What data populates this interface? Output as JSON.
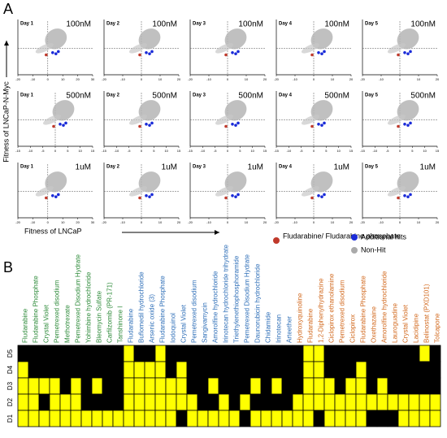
{
  "figure": {
    "panel_a": {
      "label": "A",
      "y_axis_label": "Fitness of LNCaP-N-Myc",
      "x_axis_label": "Fitness of LNCaP",
      "legend": [
        "Fludarabine/ Fludarabine phosphate",
        "Additional hits",
        "Non-Hit"
      ],
      "panels": [
        {
          "day": "Day 1",
          "dose": "100nM",
          "xlim": [
            -20,
            30
          ],
          "xticks": [
            -20,
            -10,
            0,
            10,
            20,
            30
          ]
        },
        {
          "day": "Day 2",
          "dose": "100nM",
          "xlim": [
            -20,
            20
          ],
          "xticks": [
            -20,
            -10,
            0,
            10,
            20
          ]
        },
        {
          "day": "Day 3",
          "dose": "100nM",
          "xlim": [
            -20,
            20
          ],
          "xticks": [
            -20,
            -10,
            0,
            10,
            20
          ]
        },
        {
          "day": "Day 4",
          "dose": "100nM",
          "xlim": [
            -20,
            20
          ],
          "xticks": [
            -20,
            -10,
            0,
            10,
            20
          ]
        },
        {
          "day": "Day 5",
          "dose": "100nM",
          "xlim": [
            -20,
            20
          ],
          "xticks": [
            -20,
            -10,
            0,
            10,
            20
          ]
        },
        {
          "day": "Day 1",
          "dose": "500nM",
          "xlim": [
            -15,
            15
          ],
          "xticks": [
            -15,
            -10,
            -5,
            0,
            5,
            10,
            15
          ]
        },
        {
          "day": "Day 2",
          "dose": "500nM",
          "xlim": [
            -15,
            15
          ],
          "xticks": [
            -15,
            -10,
            -5,
            0,
            5,
            10,
            15
          ]
        },
        {
          "day": "Day 3",
          "dose": "500nM",
          "xlim": [
            -15,
            15
          ],
          "xticks": [
            -15,
            -10,
            -5,
            0,
            5,
            10,
            15
          ]
        },
        {
          "day": "Day 4",
          "dose": "500nM",
          "xlim": [
            -15,
            15
          ],
          "xticks": [
            -15,
            -10,
            -5,
            0,
            5,
            10,
            15
          ]
        },
        {
          "day": "Day 5",
          "dose": "500nM",
          "xlim": [
            -15,
            15
          ],
          "xticks": [
            -15,
            -10,
            -5,
            0,
            5,
            10,
            15
          ]
        },
        {
          "day": "Day 1",
          "dose": "1uM",
          "xlim": [
            -20,
            30
          ],
          "xticks": [
            -20,
            -10,
            0,
            10,
            20,
            30
          ]
        },
        {
          "day": "Day 2",
          "dose": "1uM",
          "xlim": [
            -20,
            20
          ],
          "xticks": [
            -20,
            -10,
            0,
            10,
            20
          ]
        },
        {
          "day": "Day 3",
          "dose": "1uM",
          "xlim": [
            -20,
            20
          ],
          "xticks": [
            -20,
            -10,
            0,
            10,
            20
          ]
        },
        {
          "day": "Day 4",
          "dose": "1uM",
          "xlim": [
            -20,
            20
          ],
          "xticks": [
            -20,
            -10,
            0,
            10,
            20
          ]
        },
        {
          "day": "Day 5",
          "dose": "1uM",
          "xlim": [
            -20,
            20
          ],
          "xticks": [
            -20,
            -10,
            0,
            10,
            20
          ]
        }
      ]
    },
    "panel_b": {
      "label": "B",
      "rows": [
        "D5",
        "D4",
        "D3",
        "D2",
        "D1"
      ],
      "groups": [
        {
          "color": "#2e8b3a",
          "drugs": [
            "Fludarabine",
            "Fludarabine Phosphate",
            "Crystal Violet",
            "Pemetrexed disodium",
            "Methotrexate",
            "Pemetrexed Disodium Hydrate",
            "Yohimbine hydrochloride",
            "Bleomycin Sulfate",
            "Carfilzomib (PR-171)",
            "Tanshinone I"
          ]
        },
        {
          "color": "#2f6fb8",
          "drugs": [
            "Fludarabine",
            "Buflomedil hydrochloride",
            "Arsenic oxide (3)",
            "Fludarabine Phosphate",
            "Iodoquinol",
            "Crystal Violet",
            "Pemetrexed disodium",
            "Sangivamycin",
            "Amorolfine hydrochloride",
            "Irinotecan hydrochloride trihydrate",
            "Triethylenethiophosphoramide",
            "Pemetrexed Disodium Hydrate",
            "Daunorubicin hydrochloride",
            "Chidamide",
            "Irinotecan",
            "Arteether"
          ]
        },
        {
          "color": "#d2691e",
          "drugs": [
            "Hydroxyquinoline",
            "Fludarabine",
            "1,2-Diphenylhydrazine",
            "Ciclopirox ethanolamine",
            "Pemetrexed disodium",
            "Ciclopirox",
            "Fludarabine Phosphate",
            "Oxethazaine",
            "Amorolfine hydrochloride",
            "Lauroguadine",
            "Crystal Violet",
            "Lacidipine",
            "Belinostat (PXD101)",
            "Tolcapone"
          ]
        }
      ],
      "hit_color": "#ffff00",
      "nonhit_color": "#000000",
      "matrix": [
        [
          0,
          0,
          0,
          0,
          0,
          0,
          0,
          0,
          0,
          0,
          1,
          0,
          0,
          1,
          0,
          0,
          0,
          0,
          0,
          0,
          0,
          0,
          0,
          0,
          0,
          0,
          0,
          1,
          1,
          0,
          0,
          0,
          0,
          0,
          0,
          0,
          0,
          0,
          1,
          0
        ],
        [
          1,
          0,
          0,
          0,
          0,
          0,
          0,
          0,
          0,
          0,
          1,
          1,
          1,
          1,
          0,
          1,
          0,
          0,
          0,
          0,
          0,
          0,
          0,
          0,
          0,
          0,
          0,
          1,
          1,
          0,
          0,
          0,
          1,
          0,
          0,
          0,
          0,
          0,
          0,
          0
        ],
        [
          1,
          1,
          1,
          1,
          0,
          1,
          0,
          1,
          0,
          0,
          1,
          1,
          1,
          1,
          1,
          1,
          0,
          0,
          1,
          0,
          0,
          0,
          1,
          0,
          1,
          0,
          0,
          1,
          1,
          1,
          0,
          1,
          1,
          0,
          1,
          0,
          0,
          0,
          0,
          0
        ],
        [
          1,
          1,
          0,
          1,
          1,
          1,
          0,
          0,
          0,
          0,
          1,
          1,
          1,
          1,
          1,
          1,
          1,
          0,
          0,
          1,
          0,
          1,
          0,
          0,
          0,
          0,
          1,
          1,
          1,
          1,
          1,
          1,
          1,
          1,
          1,
          1,
          1,
          1,
          1,
          1
        ],
        [
          1,
          1,
          1,
          1,
          1,
          1,
          1,
          1,
          1,
          1,
          1,
          1,
          1,
          1,
          1,
          0,
          1,
          1,
          1,
          1,
          1,
          0,
          1,
          1,
          1,
          1,
          1,
          1,
          0,
          1,
          1,
          1,
          1,
          0,
          0,
          0,
          1,
          1,
          1,
          1
        ]
      ]
    }
  }
}
